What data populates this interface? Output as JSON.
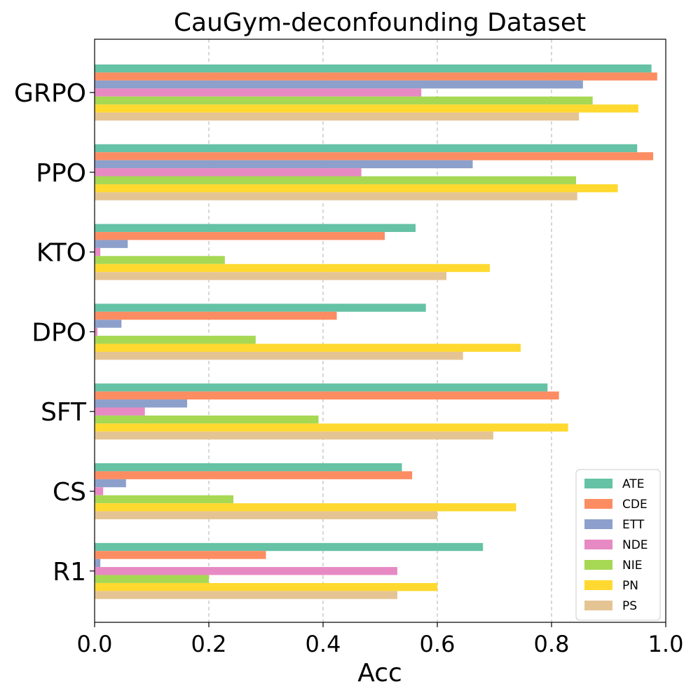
{
  "chart_data": {
    "type": "bar",
    "orientation": "horizontal",
    "title": "CauGym-deconfounding Dataset",
    "xlabel": "Acc",
    "ylabel": "",
    "xlim": [
      0.0,
      1.0
    ],
    "xticks": [
      "0.0",
      "0.2",
      "0.4",
      "0.6",
      "0.8",
      "1.0"
    ],
    "grid": "x-dashed",
    "legend_position": "bottom-right",
    "categories": [
      "GRPO",
      "PPO",
      "KTO",
      "DPO",
      "SFT",
      "CS",
      "R1"
    ],
    "series": [
      {
        "name": "ATE",
        "color": "#66c2a5",
        "values": [
          0.975,
          0.95,
          0.562,
          0.58,
          0.793,
          0.538,
          0.68
        ]
      },
      {
        "name": "CDE",
        "color": "#fc8d62",
        "values": [
          0.985,
          0.978,
          0.508,
          0.424,
          0.813,
          0.556,
          0.3
        ]
      },
      {
        "name": "ETT",
        "color": "#8da0cb",
        "values": [
          0.855,
          0.662,
          0.058,
          0.047,
          0.162,
          0.055,
          0.01
        ]
      },
      {
        "name": "NDE",
        "color": "#e78ac3",
        "values": [
          0.572,
          0.467,
          0.01,
          0.005,
          0.088,
          0.015,
          0.53
        ]
      },
      {
        "name": "NIE",
        "color": "#a6d854",
        "values": [
          0.872,
          0.843,
          0.228,
          0.282,
          0.392,
          0.243,
          0.2
        ]
      },
      {
        "name": "PN",
        "color": "#ffd92f",
        "values": [
          0.952,
          0.916,
          0.692,
          0.746,
          0.829,
          0.738,
          0.6
        ]
      },
      {
        "name": "PS",
        "color": "#e5c494",
        "values": [
          0.848,
          0.845,
          0.616,
          0.645,
          0.698,
          0.6,
          0.53
        ]
      }
    ]
  }
}
